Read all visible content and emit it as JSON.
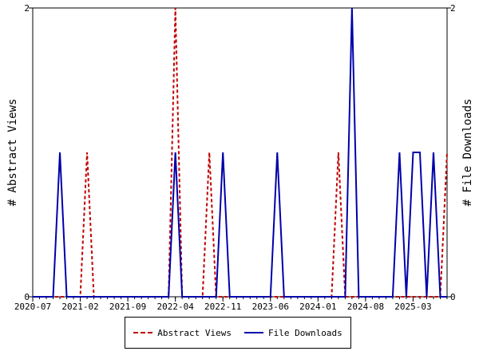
{
  "chart_data": {
    "type": "line",
    "title": "",
    "ylabel_left": "# Abstract Views",
    "ylabel_right": "# File Downloads",
    "ylim": [
      0,
      2
    ],
    "yticks": [
      "0",
      "2"
    ],
    "xticks": [
      "2020-07",
      "2021-02",
      "2021-09",
      "2022-04",
      "2022-11",
      "2023-06",
      "2024-01",
      "2024-08",
      "2025-03"
    ],
    "x_months": [
      "2020-07",
      "2020-08",
      "2020-09",
      "2020-10",
      "2020-11",
      "2020-12",
      "2021-01",
      "2021-02",
      "2021-03",
      "2021-04",
      "2021-05",
      "2021-06",
      "2021-07",
      "2021-08",
      "2021-09",
      "2021-10",
      "2021-11",
      "2021-12",
      "2022-01",
      "2022-02",
      "2022-03",
      "2022-04",
      "2022-05",
      "2022-06",
      "2022-07",
      "2022-08",
      "2022-09",
      "2022-10",
      "2022-11",
      "2022-12",
      "2023-01",
      "2023-02",
      "2023-03",
      "2023-04",
      "2023-05",
      "2023-06",
      "2023-07",
      "2023-08",
      "2023-09",
      "2023-10",
      "2023-11",
      "2023-12",
      "2024-01",
      "2024-02",
      "2024-03",
      "2024-04",
      "2024-05",
      "2024-06",
      "2024-07",
      "2024-08",
      "2024-09",
      "2024-10",
      "2024-11",
      "2024-12",
      "2025-01",
      "2025-02",
      "2025-03",
      "2025-04",
      "2025-05",
      "2025-06",
      "2025-07",
      "2025-08"
    ],
    "legend_position": "bottom",
    "series": [
      {
        "name": "Abstract Views",
        "color": "#c00000",
        "style": "dashed",
        "values": [
          0,
          0,
          0,
          0,
          0,
          0,
          0,
          0,
          1,
          0,
          0,
          0,
          0,
          0,
          0,
          0,
          0,
          0,
          0,
          0,
          0,
          2,
          0,
          0,
          0,
          0,
          1,
          0,
          0,
          0,
          0,
          0,
          0,
          0,
          0,
          0,
          0,
          0,
          0,
          0,
          0,
          0,
          0,
          0,
          0,
          1,
          0,
          0,
          0,
          0,
          0,
          0,
          0,
          0,
          0,
          0,
          0,
          0,
          0,
          0,
          0,
          1
        ]
      },
      {
        "name": "File Downloads",
        "color": "#0000aa",
        "style": "solid",
        "values": [
          0,
          0,
          0,
          0,
          1,
          0,
          0,
          0,
          0,
          0,
          0,
          0,
          0,
          0,
          0,
          0,
          0,
          0,
          0,
          0,
          0,
          1,
          0,
          0,
          0,
          0,
          0,
          0,
          1,
          0,
          0,
          0,
          0,
          0,
          0,
          0,
          1,
          0,
          0,
          0,
          0,
          0,
          0,
          0,
          0,
          0,
          0,
          2,
          0,
          0,
          0,
          0,
          0,
          0,
          1,
          0,
          1,
          1,
          0,
          1,
          0,
          0
        ]
      }
    ]
  }
}
